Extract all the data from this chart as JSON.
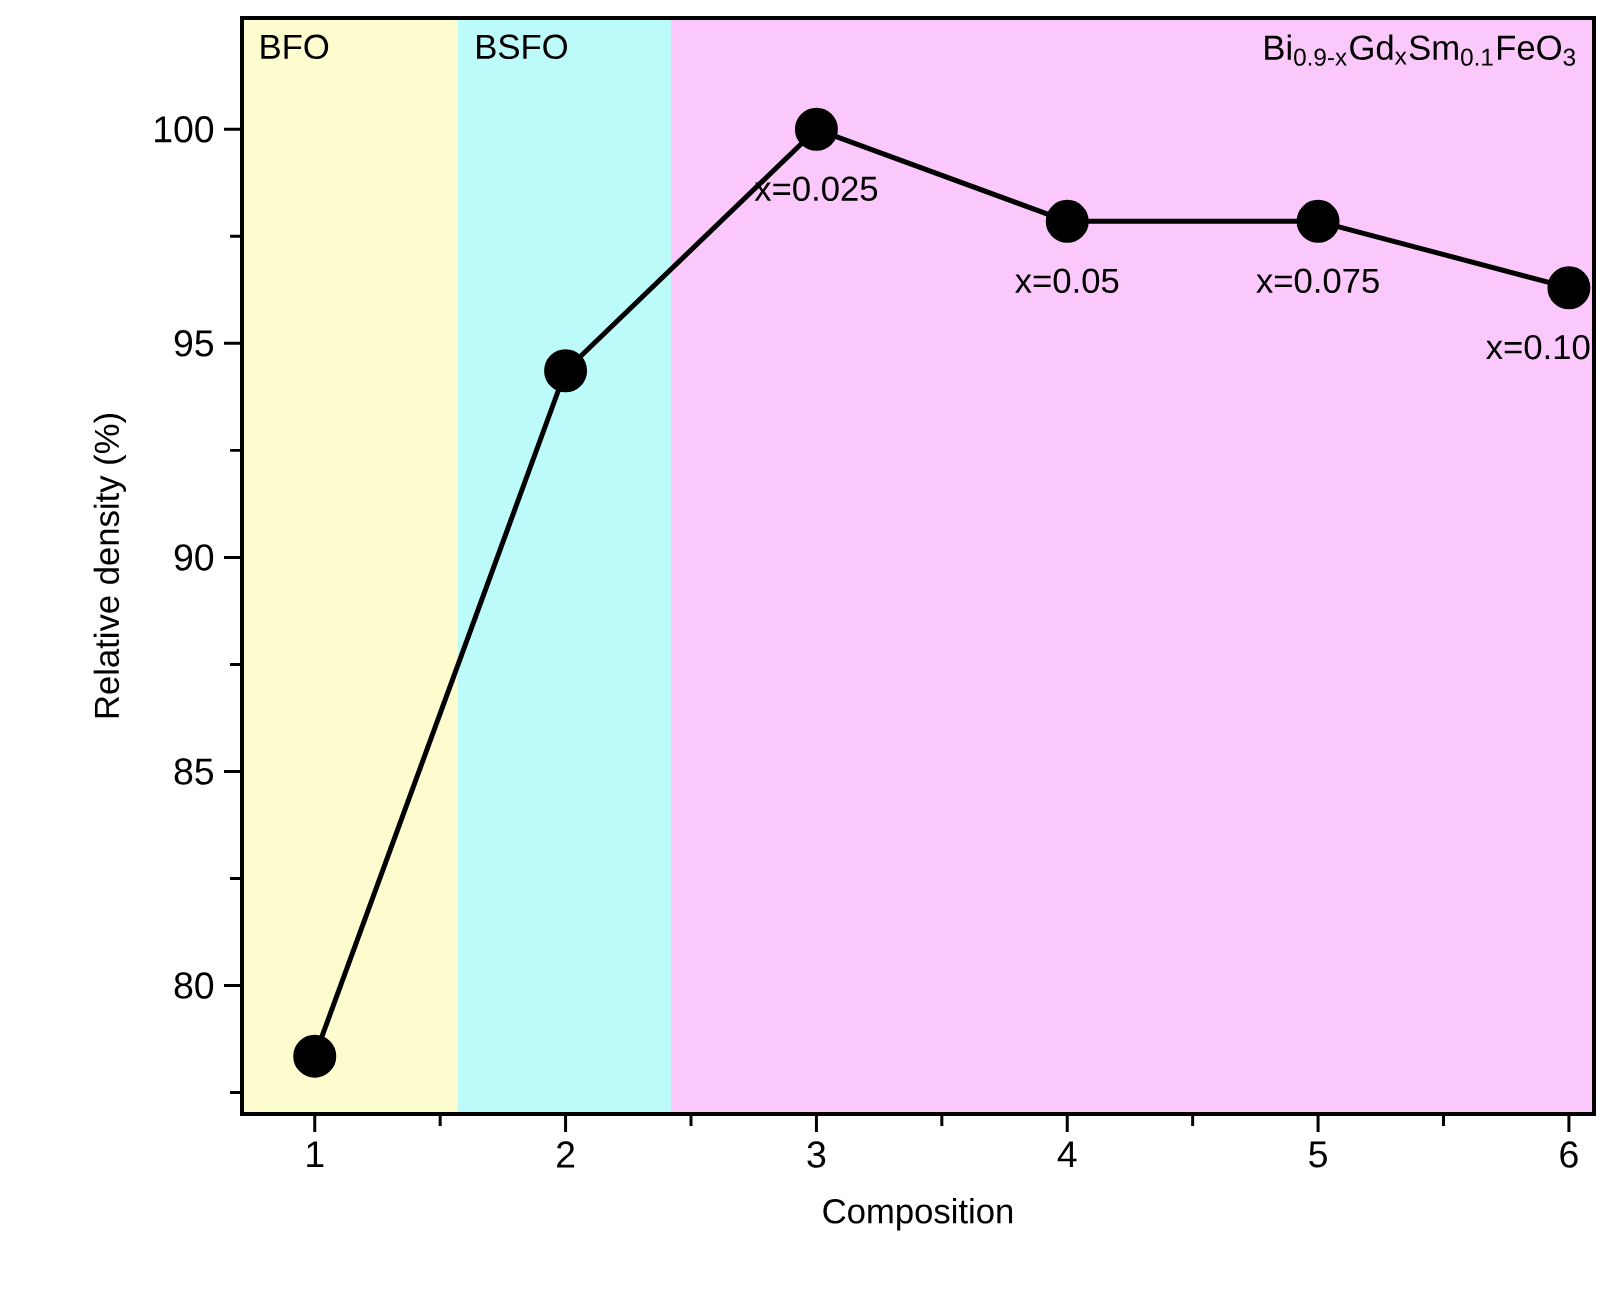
{
  "chart_data": {
    "type": "line",
    "xlabel": "Composition",
    "ylabel": "Relative density (%)",
    "x": [
      1,
      2,
      3,
      4,
      5,
      6
    ],
    "series": [
      {
        "color": "#000000",
        "values": [
          78.35,
          94.36,
          100,
          97.85,
          97.85,
          96.3
        ]
      }
    ],
    "marker": "circle",
    "line_style": "solid",
    "xlim": [
      0.71,
      6.1
    ],
    "ylim": [
      77,
      102.6
    ],
    "xticks": [
      1,
      {
        "value": 1.5,
        "label": null
      },
      2,
      {
        "value": 2.5,
        "label": null
      },
      3,
      {
        "value": 3.5,
        "label": null
      },
      4,
      {
        "value": 4.5,
        "label": null
      },
      5,
      {
        "value": 5.5,
        "label": null
      },
      6
    ],
    "yticks": [
      {
        "value": 77.5,
        "label": null
      },
      80,
      {
        "value": 82.5,
        "label": null
      },
      85,
      {
        "value": 87.5,
        "label": null
      },
      90,
      {
        "value": 92.5,
        "label": null
      },
      95,
      {
        "value": 97.5,
        "label": null
      },
      100
    ],
    "bands": [
      {
        "axis": "x",
        "from": 0.71,
        "to": 1.57,
        "label": "BFO",
        "color": "#fdfccf"
      },
      {
        "axis": "x",
        "from": 1.57,
        "to": 2.42,
        "label": "BSFO",
        "color": "#bdfbfb"
      },
      {
        "axis": "x",
        "from": 2.42,
        "to": 6.1,
        "label": "Bi$_{0.9-x}$Gd$_{x}$Sm$_{0.1}$FeO$_{3}$",
        "color": "#fbc8fb"
      }
    ],
    "annotations": [
      {
        "text": "x=0.025",
        "x": 3,
        "y": 100
      },
      {
        "text": "x=0.05",
        "x": 4,
        "y": 97.85
      },
      {
        "text": "x=0.075",
        "x": 5,
        "y": 97.85
      },
      {
        "text": "x=0.10",
        "x": 6,
        "y": 96.3
      }
    ]
  }
}
